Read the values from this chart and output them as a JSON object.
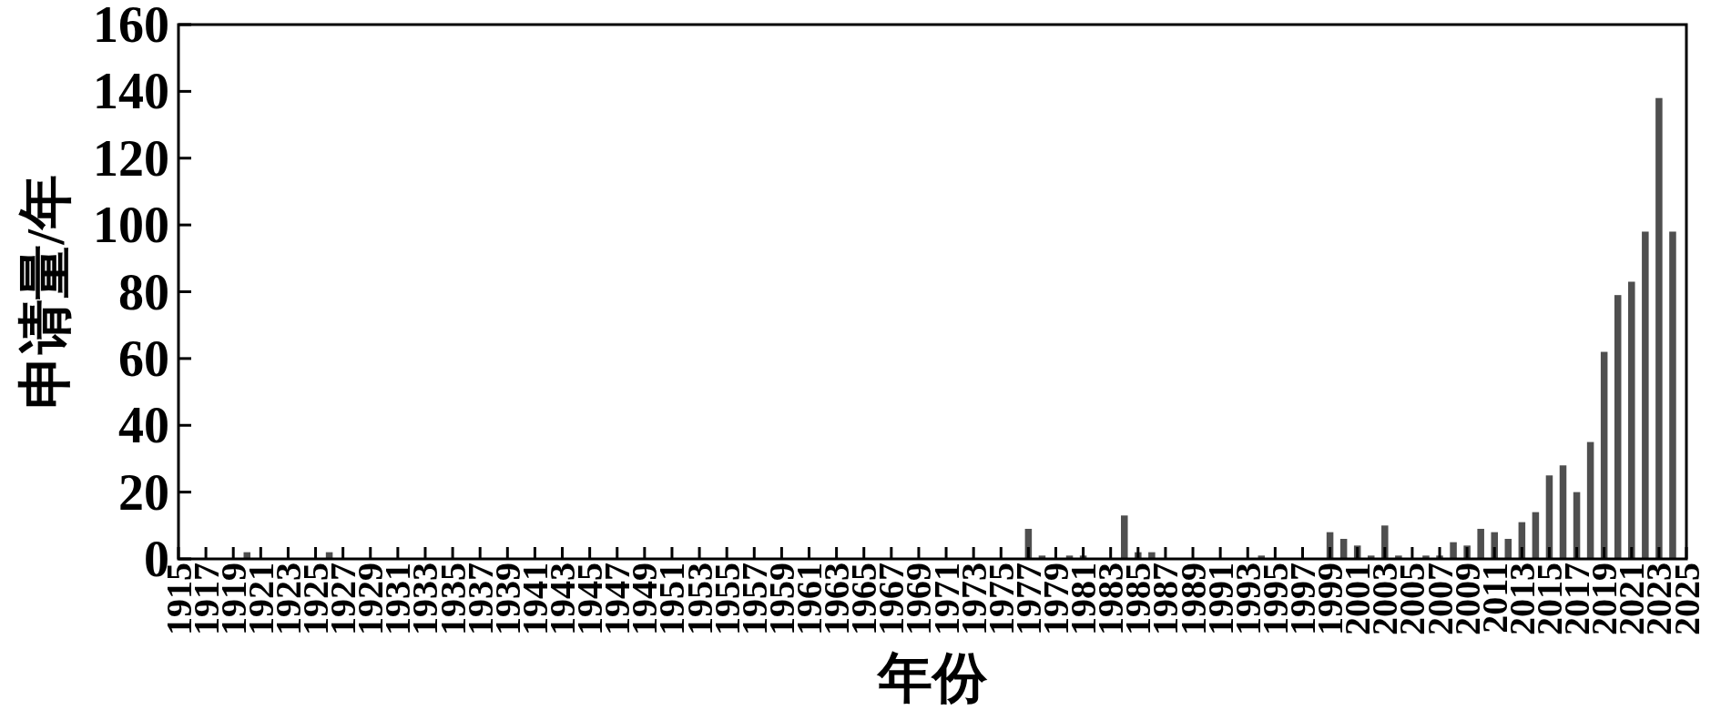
{
  "chart_data": {
    "type": "bar",
    "xlabel": "年份",
    "ylabel": "申请量/年",
    "color": "#4f4f4f",
    "x": [
      1920,
      1926,
      1977,
      1978,
      1980,
      1981,
      1984,
      1985,
      1986,
      1994,
      1999,
      2000,
      2001,
      2002,
      2003,
      2004,
      2006,
      2007,
      2008,
      2009,
      2010,
      2011,
      2012,
      2013,
      2014,
      2015,
      2016,
      2017,
      2018,
      2019,
      2020,
      2021,
      2022,
      2023,
      2024
    ],
    "values": [
      2,
      2,
      9,
      1,
      1,
      1,
      13,
      2,
      2,
      1,
      8,
      6,
      4,
      1,
      10,
      1,
      1,
      1,
      5,
      4,
      9,
      8,
      6,
      11,
      14,
      25,
      28,
      20,
      35,
      62,
      79,
      83,
      98,
      138,
      98
    ],
    "xlim": [
      1915,
      2025
    ],
    "xticks": [
      1915,
      1917,
      1919,
      1921,
      1923,
      1925,
      1927,
      1929,
      1931,
      1933,
      1935,
      1937,
      1939,
      1941,
      1943,
      1945,
      1947,
      1949,
      1951,
      1953,
      1955,
      1957,
      1959,
      1961,
      1963,
      1965,
      1967,
      1969,
      1971,
      1973,
      1975,
      1977,
      1979,
      1981,
      1983,
      1985,
      1987,
      1989,
      1991,
      1993,
      1995,
      1997,
      1999,
      2001,
      2003,
      2005,
      2007,
      2009,
      2011,
      2013,
      2015,
      2017,
      2019,
      2021,
      2023,
      2025
    ],
    "ylim": [
      0,
      160
    ],
    "yticks": [
      0,
      20,
      40,
      60,
      80,
      100,
      120,
      140,
      160
    ]
  }
}
